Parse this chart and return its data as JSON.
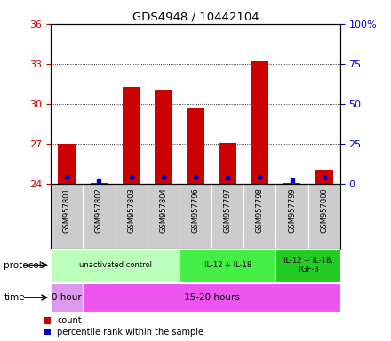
{
  "title": "GDS4948 / 10442104",
  "samples": [
    "GSM957801",
    "GSM957802",
    "GSM957803",
    "GSM957804",
    "GSM957796",
    "GSM957797",
    "GSM957798",
    "GSM957799",
    "GSM957800"
  ],
  "count_values": [
    27.0,
    24.1,
    31.3,
    31.1,
    29.7,
    27.1,
    33.2,
    24.1,
    25.1
  ],
  "count_base": 24.0,
  "percentile_values": [
    4.5,
    2.0,
    4.8,
    4.5,
    4.8,
    4.2,
    4.5,
    2.5,
    4.0
  ],
  "ylim_left": [
    24,
    36
  ],
  "ylim_right": [
    0,
    100
  ],
  "yticks_left": [
    24,
    27,
    30,
    33,
    36
  ],
  "yticks_right": [
    0,
    25,
    50,
    75,
    100
  ],
  "ytick_labels_right": [
    "0",
    "25",
    "50",
    "75",
    "100%"
  ],
  "bar_color": "#cc0000",
  "blue_color": "#0000cc",
  "protocol_groups": [
    {
      "label": "unactivated control",
      "start": 0,
      "end": 4,
      "color": "#bbffbb"
    },
    {
      "label": "IL-12 + IL-18",
      "start": 4,
      "end": 7,
      "color": "#44ee44"
    },
    {
      "label": "IL-12 + IL-18,\nTGF-β",
      "start": 7,
      "end": 9,
      "color": "#22cc22"
    }
  ],
  "time_groups": [
    {
      "label": "0 hour",
      "start": 0,
      "end": 1,
      "color": "#dd99ee"
    },
    {
      "label": "15-20 hours",
      "start": 1,
      "end": 9,
      "color": "#ee55ee"
    }
  ],
  "protocol_label": "protocol",
  "time_label": "time",
  "legend_count": "count",
  "legend_pct": "percentile rank within the sample",
  "bar_width": 0.55,
  "sample_area_bg": "#cccccc",
  "left_color": "#cc0000",
  "right_color": "#0000cc"
}
